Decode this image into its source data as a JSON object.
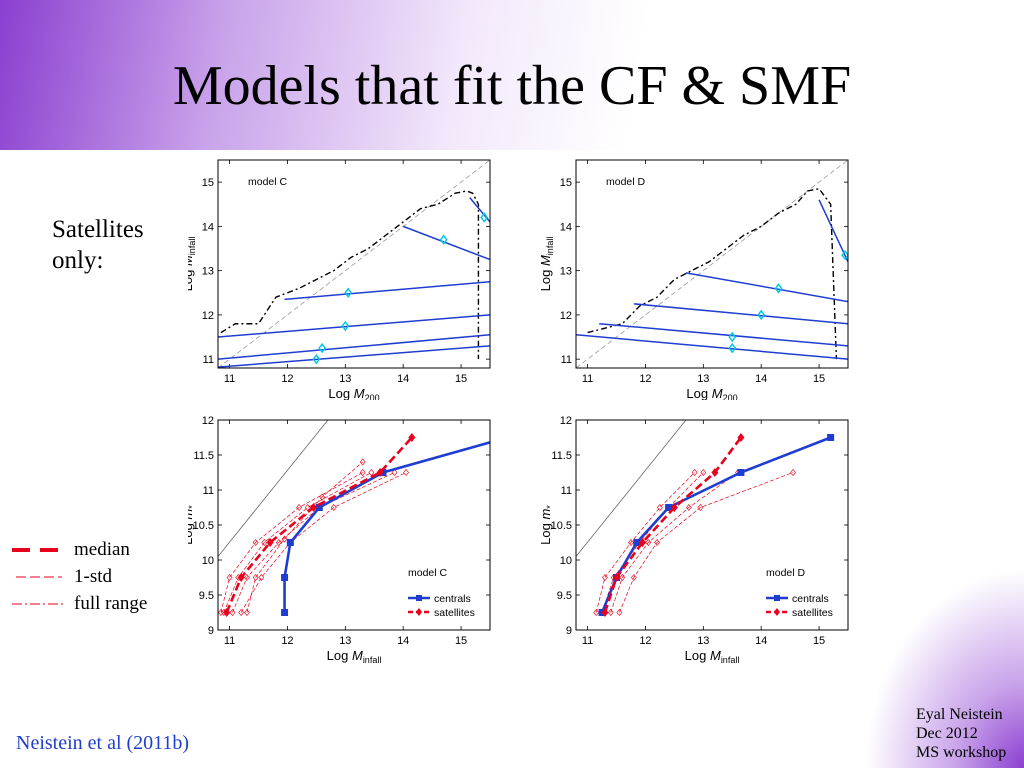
{
  "slide": {
    "title": "Models that fit the CF & SMF",
    "side_label": "Satellites\nonly:",
    "legend": [
      {
        "label": "median",
        "style": "thick-dash",
        "color": "#e8001c"
      },
      {
        "label": "1-std",
        "style": "dash",
        "color": "#e8001c"
      },
      {
        "label": "full range",
        "style": "dash-dot",
        "color": "#e8001c"
      }
    ],
    "citation": "Neistein et al (2011b)",
    "credits": [
      "Eyal  Neistein",
      "Dec 2012",
      "MS workshop"
    ]
  },
  "colors": {
    "accent_purple": "#8b3fd0",
    "line_blue": "#1f3ed1",
    "marker_cyan": "#00c8e6",
    "red": "#e8001c"
  },
  "chart_data": [
    {
      "id": "top-left",
      "type": "line",
      "panel_label": "model C",
      "xlabel": "Log",
      "xlabel_sym": "M",
      "xlabel_sub": "200",
      "ylabel": "Log",
      "ylabel_sym": "M",
      "ylabel_sub": "infall",
      "xlim": [
        10.8,
        15.5
      ],
      "ylim": [
        10.8,
        15.5
      ],
      "xticks": [
        11,
        12,
        13,
        14,
        15
      ],
      "yticks": [
        11,
        12,
        13,
        14,
        15
      ],
      "diagonal": true,
      "envelope": [
        [
          10.85,
          11.6
        ],
        [
          11.1,
          11.8
        ],
        [
          11.5,
          11.8
        ],
        [
          11.8,
          12.4
        ],
        [
          12.2,
          12.6
        ],
        [
          12.5,
          12.8
        ],
        [
          12.8,
          13.0
        ],
        [
          13.1,
          13.3
        ],
        [
          13.4,
          13.5
        ],
        [
          13.7,
          13.8
        ],
        [
          14.0,
          14.1
        ],
        [
          14.3,
          14.4
        ],
        [
          14.6,
          14.5
        ],
        [
          14.9,
          14.75
        ],
        [
          15.1,
          14.8
        ],
        [
          15.2,
          14.75
        ],
        [
          15.3,
          14.5
        ],
        [
          15.3,
          11.0
        ]
      ],
      "lines": [
        [
          [
            10.8,
            11.5
          ],
          [
            15.5,
            12.0
          ]
        ],
        [
          [
            10.8,
            11.0
          ],
          [
            15.5,
            11.55
          ]
        ],
        [
          [
            10.8,
            10.82
          ],
          [
            15.5,
            11.3
          ]
        ],
        [
          [
            11.95,
            12.35
          ],
          [
            15.5,
            12.75
          ]
        ],
        [
          [
            14.0,
            14.0
          ],
          [
            15.5,
            13.25
          ]
        ],
        [
          [
            15.15,
            14.65
          ],
          [
            15.5,
            14.1
          ]
        ]
      ],
      "markers": [
        [
          13.05,
          12.5
        ],
        [
          13.0,
          11.75
        ],
        [
          12.6,
          11.25
        ],
        [
          12.5,
          11.0
        ],
        [
          14.7,
          13.7
        ],
        [
          15.4,
          14.2
        ]
      ]
    },
    {
      "id": "top-right",
      "type": "line",
      "panel_label": "model D",
      "xlabel": "Log",
      "xlabel_sym": "M",
      "xlabel_sub": "200",
      "ylabel": "Log",
      "ylabel_sym": "M",
      "ylabel_sub": "infall",
      "xlim": [
        10.8,
        15.5
      ],
      "ylim": [
        10.8,
        15.5
      ],
      "xticks": [
        11,
        12,
        13,
        14,
        15
      ],
      "yticks": [
        11,
        12,
        13,
        14,
        15
      ],
      "diagonal": true,
      "envelope": [
        [
          11.0,
          11.6
        ],
        [
          11.3,
          11.7
        ],
        [
          11.6,
          11.8
        ],
        [
          11.9,
          12.2
        ],
        [
          12.2,
          12.4
        ],
        [
          12.5,
          12.8
        ],
        [
          12.8,
          13.0
        ],
        [
          13.1,
          13.2
        ],
        [
          13.4,
          13.5
        ],
        [
          13.7,
          13.8
        ],
        [
          14.0,
          14.0
        ],
        [
          14.3,
          14.3
        ],
        [
          14.6,
          14.5
        ],
        [
          14.8,
          14.8
        ],
        [
          15.0,
          14.85
        ],
        [
          15.2,
          14.5
        ],
        [
          15.3,
          11.0
        ]
      ],
      "lines": [
        [
          [
            10.8,
            11.55
          ],
          [
            15.5,
            11.0
          ]
        ],
        [
          [
            11.2,
            11.8
          ],
          [
            15.5,
            11.3
          ]
        ],
        [
          [
            11.8,
            12.25
          ],
          [
            15.5,
            11.8
          ]
        ],
        [
          [
            12.7,
            12.95
          ],
          [
            15.5,
            12.3
          ]
        ],
        [
          [
            15.0,
            14.6
          ],
          [
            15.5,
            13.2
          ]
        ]
      ],
      "markers": [
        [
          13.5,
          11.25
        ],
        [
          13.5,
          11.5
        ],
        [
          14.0,
          12.0
        ],
        [
          14.3,
          12.6
        ],
        [
          15.45,
          13.35
        ]
      ]
    },
    {
      "id": "bottom-left",
      "type": "line",
      "panel_label": "model C",
      "xlabel": "Log",
      "xlabel_sym": "M",
      "xlabel_sub": "infall",
      "ylabel": "Log",
      "ylabel_sym": "m",
      "ylabel_sub": "*",
      "xlim": [
        10.8,
        15.5
      ],
      "ylim": [
        9,
        12
      ],
      "xticks": [
        11,
        12,
        13,
        14,
        15
      ],
      "yticks": [
        9,
        9.5,
        10,
        10.5,
        11,
        11.5,
        12
      ],
      "diagonal_line": [
        [
          10.8,
          10.05
        ],
        [
          12.7,
          12.0
        ]
      ],
      "legend": [
        "centrals",
        "satellites"
      ],
      "series": [
        {
          "name": "centrals",
          "color": "#1f3ed1",
          "marker": "square",
          "x": [
            11.95,
            11.95,
            12.05,
            12.55,
            13.65,
            15.5
          ],
          "y": [
            9.25,
            9.75,
            10.25,
            10.75,
            11.25,
            11.68
          ]
        },
        {
          "name": "satellites",
          "color": "#e8001c",
          "marker": "diamond",
          "x": [
            10.95,
            11.2,
            11.7,
            12.45,
            13.6,
            14.15
          ],
          "y": [
            9.25,
            9.75,
            10.25,
            10.75,
            11.25,
            11.75
          ],
          "bands": [
            {
              "x": [
                10.85,
                11.0,
                11.45,
                12.2,
                13.3
              ],
              "y": [
                9.25,
                9.75,
                10.25,
                10.75,
                11.25
              ]
            },
            {
              "x": [
                10.9,
                11.15,
                11.6,
                12.35,
                13.45
              ],
              "y": [
                9.25,
                9.75,
                10.25,
                10.75,
                11.25
              ]
            },
            {
              "x": [
                11.05,
                11.3,
                11.85,
                12.55,
                13.85
              ],
              "y": [
                9.25,
                9.75,
                10.25,
                10.75,
                11.25
              ]
            },
            {
              "x": [
                11.2,
                11.55,
                12.05,
                12.8,
                14.05
              ],
              "y": [
                9.25,
                9.75,
                10.25,
                10.75,
                11.25
              ]
            },
            {
              "x": [
                11.3,
                11.45,
                11.95,
                12.6,
                13.3
              ],
              "y": [
                9.25,
                9.75,
                10.3,
                10.9,
                11.4
              ]
            }
          ]
        }
      ]
    },
    {
      "id": "bottom-right",
      "type": "line",
      "panel_label": "model D",
      "xlabel": "Log",
      "xlabel_sym": "M",
      "xlabel_sub": "infall",
      "ylabel": "Log",
      "ylabel_sym": "m",
      "ylabel_sub": "*",
      "xlim": [
        10.8,
        15.5
      ],
      "ylim": [
        9,
        12
      ],
      "xticks": [
        11,
        12,
        13,
        14,
        15
      ],
      "yticks": [
        9,
        9.5,
        10,
        10.5,
        11,
        11.5,
        12
      ],
      "diagonal_line": [
        [
          10.8,
          10.05
        ],
        [
          12.7,
          12.0
        ]
      ],
      "legend": [
        "centrals",
        "satellites"
      ],
      "series": [
        {
          "name": "centrals",
          "color": "#1f3ed1",
          "marker": "square",
          "x": [
            11.25,
            11.5,
            11.85,
            12.4,
            13.65,
            15.2
          ],
          "y": [
            9.25,
            9.75,
            10.25,
            10.75,
            11.25,
            11.75
          ]
        },
        {
          "name": "satellites",
          "color": "#e8001c",
          "marker": "diamond",
          "x": [
            11.3,
            11.5,
            11.95,
            12.5,
            13.2,
            13.65
          ],
          "y": [
            9.25,
            9.75,
            10.25,
            10.75,
            11.25,
            11.75
          ],
          "bands": [
            {
              "x": [
                11.15,
                11.3,
                11.75,
                12.25,
                12.85
              ],
              "y": [
                9.25,
                9.75,
                10.25,
                10.75,
                11.25
              ]
            },
            {
              "x": [
                11.25,
                11.45,
                11.9,
                12.4,
                13.0
              ],
              "y": [
                9.25,
                9.75,
                10.25,
                10.75,
                11.25
              ]
            },
            {
              "x": [
                11.4,
                11.6,
                12.05,
                12.75,
                13.6
              ],
              "y": [
                9.25,
                9.75,
                10.25,
                10.75,
                11.25
              ]
            },
            {
              "x": [
                11.55,
                11.8,
                12.2,
                12.95,
                14.55
              ],
              "y": [
                9.25,
                9.75,
                10.25,
                10.75,
                11.25
              ]
            }
          ]
        }
      ]
    }
  ]
}
